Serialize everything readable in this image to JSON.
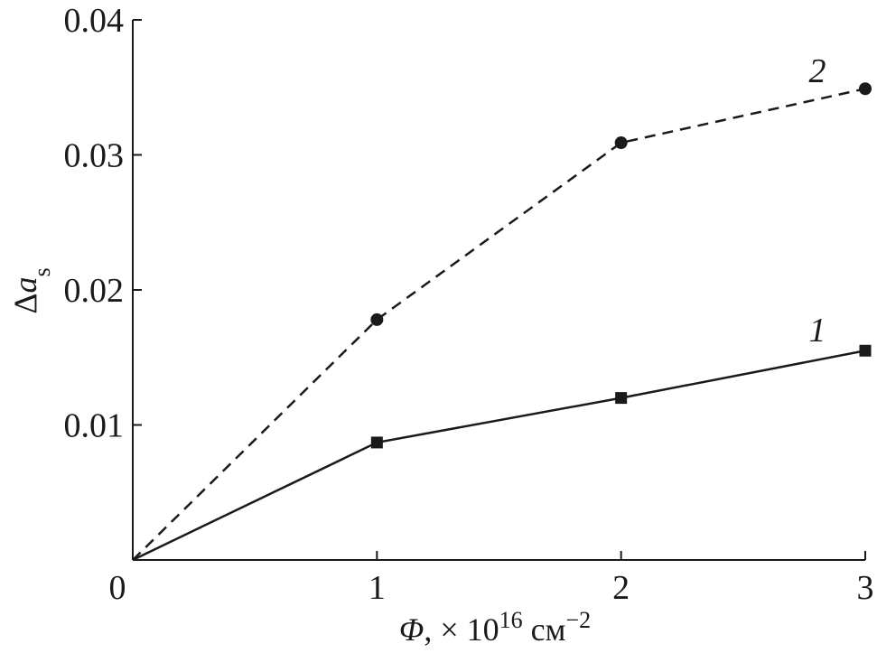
{
  "chart_data": {
    "type": "line",
    "xlabel": {
      "symbol": "Φ",
      "prefix": ", × 10",
      "exp": "16",
      "unit": " см",
      "unit_exp": "−2"
    },
    "ylabel": {
      "symbol": "Δ",
      "var": "a",
      "sub": "s"
    },
    "xlim": [
      0,
      3
    ],
    "ylim": [
      0,
      0.04
    ],
    "x_ticks": [
      0,
      1,
      2,
      3
    ],
    "x_tick_labels": [
      "0",
      "1",
      "2",
      "3"
    ],
    "y_ticks": [
      0.01,
      0.02,
      0.03,
      0.04
    ],
    "y_tick_labels": [
      "0.01",
      "0.02",
      "0.03",
      "0.04"
    ],
    "grid": false,
    "series": [
      {
        "name": "1",
        "x": [
          0,
          1,
          2,
          3
        ],
        "y": [
          0,
          0.0087,
          0.012,
          0.0155
        ],
        "line_style": "solid",
        "marker": "square",
        "color": "#1a1a1a"
      },
      {
        "name": "2",
        "x": [
          0,
          1,
          2,
          3
        ],
        "y": [
          0,
          0.0178,
          0.0309,
          0.0349
        ],
        "line_style": "dashed",
        "marker": "circle",
        "color": "#1a1a1a"
      }
    ]
  }
}
